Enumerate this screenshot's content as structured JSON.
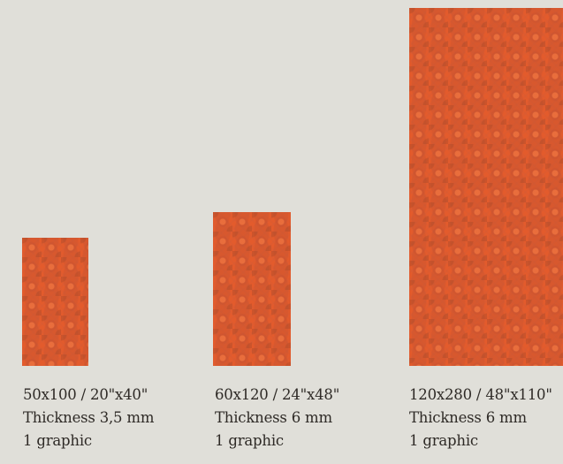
{
  "products": [
    {
      "size": "50x100 / 20\"x40\"",
      "thickness": "Thickness 3,5 mm",
      "graphics": "1 graphic"
    },
    {
      "size": "60x120 / 24\"x48\"",
      "thickness": "Thickness 6 mm",
      "graphics": "1 graphic"
    },
    {
      "size": "120x280 / 48\"x110\"",
      "thickness": "Thickness 6 mm",
      "graphics": "1 graphic"
    }
  ],
  "colors": {
    "background": "#e0dfd9",
    "tile": "#e35b2c",
    "text": "#2e2a26"
  }
}
